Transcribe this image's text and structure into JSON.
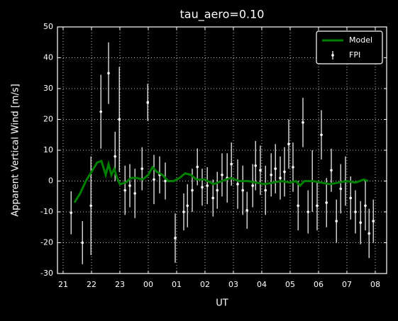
{
  "chart_data": {
    "type": "line",
    "title": "tau_aero=0.10",
    "xlabel": "UT",
    "ylabel": "Apparent Vertical Wind [m/s]",
    "xlim": [
      20.8,
      32.4
    ],
    "ylim": [
      -30,
      50
    ],
    "xticks": [
      21,
      22,
      23,
      {
        "value": 24,
        "label": "00"
      },
      {
        "value": 25,
        "label": "01"
      },
      {
        "value": 26,
        "label": "02"
      },
      {
        "value": 27,
        "label": "03"
      },
      {
        "value": 28,
        "label": "04"
      },
      {
        "value": 29,
        "label": "05"
      },
      {
        "value": 30,
        "label": "06"
      },
      {
        "value": 31,
        "label": "07"
      },
      {
        "value": 32,
        "label": "08"
      }
    ],
    "yticks": [
      -30,
      -20,
      -10,
      0,
      10,
      20,
      30,
      40,
      50
    ],
    "grid": true,
    "legend": "upper right",
    "series": [
      {
        "name": "Model",
        "type": "line",
        "color": "#008000",
        "x": [
          21.4,
          21.6,
          21.8,
          22.0,
          22.2,
          22.35,
          22.5,
          22.6,
          22.7,
          22.8,
          22.9,
          23.0,
          23.2,
          23.4,
          23.6,
          23.8,
          24.0,
          24.15,
          24.3,
          24.5,
          24.7,
          24.9,
          25.1,
          25.3,
          25.5,
          25.7,
          26.0,
          26.3,
          26.6,
          26.9,
          27.2,
          27.5,
          27.8,
          28.1,
          28.4,
          28.7,
          29.0,
          29.2,
          29.35,
          29.5,
          29.8,
          30.1,
          30.4,
          30.7,
          31.0,
          31.3,
          31.6,
          31.75
        ],
        "values": [
          -7,
          -4,
          0,
          3,
          6,
          6.5,
          2,
          5.5,
          2,
          4,
          1,
          -1,
          -0.5,
          1,
          1,
          0.5,
          2,
          4.5,
          3,
          2,
          0,
          0,
          1,
          2.5,
          2,
          0.5,
          0.5,
          -1,
          0,
          1,
          0,
          0,
          -0.5,
          -1,
          -0.5,
          0,
          -0.5,
          0,
          -1.5,
          0,
          0,
          -0.5,
          -1,
          -0.5,
          0,
          -0.5,
          0.5,
          0
        ]
      },
      {
        "name": "FPI",
        "type": "errorbar",
        "color": "#ffffff",
        "x": [
          21.28,
          21.68,
          21.98,
          22.33,
          22.6,
          22.83,
          22.98,
          23.18,
          23.35,
          23.53,
          23.78,
          23.98,
          24.2,
          24.4,
          24.6,
          24.95,
          25.25,
          25.38,
          25.55,
          25.73,
          25.9,
          26.08,
          26.28,
          26.43,
          26.6,
          26.78,
          26.93,
          27.15,
          27.33,
          27.48,
          27.68,
          27.78,
          27.95,
          28.13,
          28.33,
          28.48,
          28.65,
          28.8,
          28.95,
          29.1,
          29.28,
          29.45,
          29.63,
          29.78,
          29.95,
          30.1,
          30.28,
          30.45,
          30.63,
          30.78,
          30.95,
          31.13,
          31.3,
          31.48,
          31.65,
          31.78,
          31.93
        ],
        "values": [
          -10.3,
          -20,
          -8,
          22.5,
          35,
          8,
          20,
          -3,
          -1.5,
          -4,
          4,
          25.5,
          0.5,
          2,
          0,
          -18.5,
          -10,
          -8,
          -3,
          4.6,
          -2,
          -1.5,
          -5.5,
          -3,
          2,
          1,
          5.5,
          -1,
          -3,
          -9.5,
          -1.5,
          5,
          3.5,
          -3,
          2,
          4,
          1,
          3,
          12,
          4.5,
          -8,
          19,
          -10,
          0,
          -8,
          15,
          -7,
          3.5,
          -13,
          -2.5,
          0,
          -5.5,
          -10,
          -13.5,
          -8,
          -17,
          -13
        ],
        "errors": [
          7,
          7,
          16,
          12,
          10,
          8,
          17,
          8,
          7,
          8,
          7,
          6,
          8,
          6,
          6,
          8,
          6,
          7,
          7,
          6,
          6,
          6,
          6,
          6,
          7,
          8,
          7,
          8,
          8,
          6,
          7,
          8,
          8,
          8,
          7,
          8,
          7,
          8,
          8,
          8,
          8,
          8,
          7,
          10,
          8,
          8,
          8,
          7,
          7,
          8,
          8,
          7,
          7,
          7,
          8,
          8,
          7
        ]
      }
    ]
  }
}
